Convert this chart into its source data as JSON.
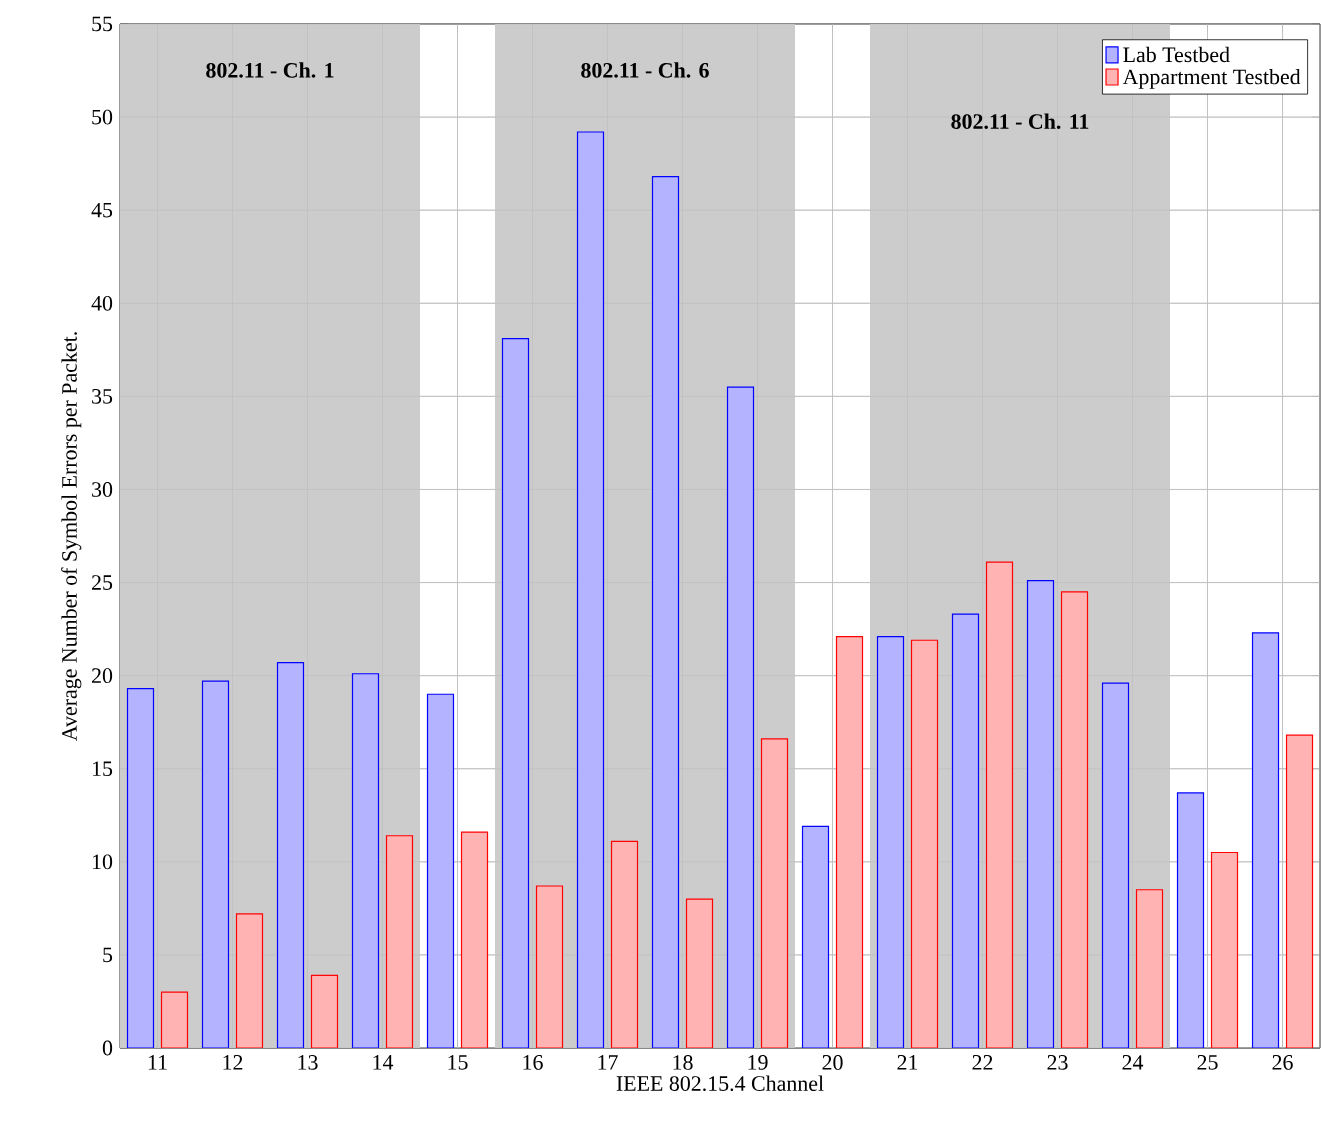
{
  "chart_data": {
    "type": "bar",
    "xlabel": "IEEE 802.15.4 Channel",
    "ylabel": "Average Number of Symbol Errors per Packet.",
    "x": [
      11,
      12,
      13,
      14,
      15,
      16,
      17,
      18,
      19,
      20,
      21,
      22,
      23,
      24,
      25,
      26
    ],
    "xlim": [
      10.5,
      26.5
    ],
    "xticks": [
      11,
      12,
      13,
      14,
      15,
      16,
      17,
      18,
      19,
      20,
      21,
      22,
      23,
      24,
      25,
      26
    ],
    "ylim": [
      0,
      55
    ],
    "yticks": [
      0,
      5,
      10,
      15,
      20,
      25,
      30,
      35,
      40,
      45,
      50,
      55
    ],
    "series": [
      {
        "name": "Lab Testbed",
        "color": "#b3b3ff",
        "values": [
          19.3,
          19.7,
          20.7,
          20.1,
          19.0,
          38.1,
          49.2,
          46.8,
          35.5,
          11.9,
          22.1,
          23.3,
          25.1,
          19.6,
          13.7,
          22.3
        ]
      },
      {
        "name": "Appartment Testbed",
        "color": "#ffb3b3",
        "values": [
          3.0,
          7.2,
          3.9,
          11.4,
          11.6,
          8.7,
          11.1,
          8.0,
          16.6,
          22.1,
          21.9,
          26.1,
          24.5,
          8.5,
          10.5,
          16.8
        ]
      }
    ],
    "bands": [
      {
        "axis": "x",
        "from": 10.5,
        "to": 14.5,
        "label": "802.11 - Ch. 1",
        "color": "#cccccc"
      },
      {
        "axis": "x",
        "from": 15.5,
        "to": 19.5,
        "label": "802.11 - Ch. 6",
        "color": "#cccccc"
      },
      {
        "axis": "x",
        "from": 20.5,
        "to": 24.5,
        "label": "802.11 - Ch. 11",
        "color": "#cccccc"
      }
    ],
    "grid": true,
    "legend": "top right"
  }
}
